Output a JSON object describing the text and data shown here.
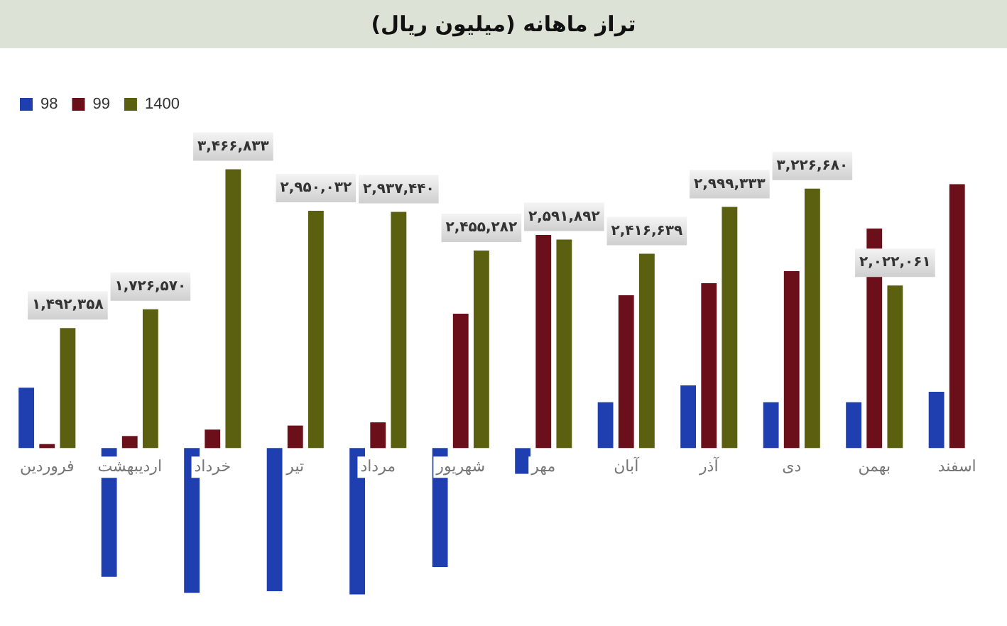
{
  "chart_data": {
    "type": "bar",
    "title": "تراز ماهانه (میلیون ریال)",
    "categories": [
      "فروردین",
      "اردیبهشت",
      "خرداد",
      "تیر",
      "مرداد",
      "شهریور",
      "مهر",
      "آبان",
      "آذر",
      "دی",
      "بهمن",
      "اسفند"
    ],
    "series": [
      {
        "name": "98",
        "color": "#1f3fb0",
        "values": [
          750000,
          -1600000,
          -1800000,
          -1780000,
          -1820000,
          -1480000,
          -320000,
          570000,
          780000,
          570000,
          570000,
          700000
        ]
      },
      {
        "name": "99",
        "color": "#6b0f1a",
        "values": [
          50000,
          150000,
          230000,
          280000,
          320000,
          1670000,
          2650000,
          1900000,
          2050000,
          2200000,
          2730000,
          3280000
        ]
      },
      {
        "name": "1400",
        "color": "#5a6010",
        "values": [
          1492358,
          1726570,
          3466833,
          2950032,
          2937440,
          2455282,
          2591892,
          2416639,
          2999333,
          3226680,
          2022061,
          null
        ],
        "value_labels": [
          "۱,۴۹۲,۳۵۸",
          "۱,۷۲۶,۵۷۰",
          "۳,۴۶۶,۸۳۳",
          "۲,۹۵۰,۰۳۲",
          "۲,۹۳۷,۴۴۰",
          "۲,۴۵۵,۲۸۲",
          "۲,۵۹۱,۸۹۲",
          "۲,۴۱۶,۶۳۹",
          "۲,۹۹۹,۳۳۳",
          "۳,۲۲۶,۶۸۰",
          "۲,۰۲۲,۰۶۱",
          null
        ]
      }
    ],
    "grid": false,
    "legend": "top left"
  }
}
